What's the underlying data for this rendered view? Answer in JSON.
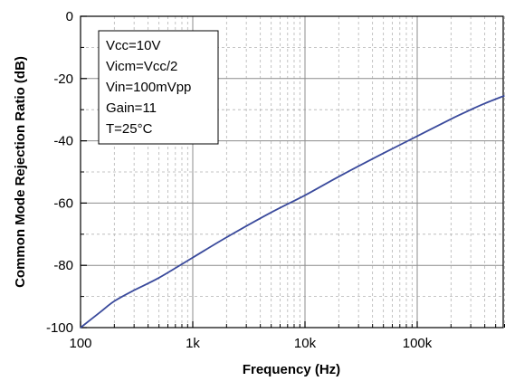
{
  "chart_data": {
    "type": "line",
    "title": "",
    "xlabel": "Frequency (Hz)",
    "ylabel": "Common Mode Rejection Ratio (dB)",
    "x_scale": "log",
    "xlim": [
      100,
      600000
    ],
    "ylim": [
      -100,
      0
    ],
    "x_ticks": [
      {
        "value": 100,
        "label": "100"
      },
      {
        "value": 1000,
        "label": "1k"
      },
      {
        "value": 10000,
        "label": "10k"
      },
      {
        "value": 100000,
        "label": "100k"
      }
    ],
    "y_ticks": [
      {
        "value": 0,
        "label": "0"
      },
      {
        "value": -20,
        "label": "-20"
      },
      {
        "value": -40,
        "label": "-40"
      },
      {
        "value": -60,
        "label": "-60"
      },
      {
        "value": -80,
        "label": "-80"
      },
      {
        "value": -100,
        "label": "-100"
      }
    ],
    "grid": true,
    "legend_position": "top-left",
    "conditions": [
      "Vcc=10V",
      "Vicm=Vcc/2",
      "Vin=100mVpp",
      "Gain=11",
      "T=25°C"
    ],
    "series": [
      {
        "color": "#3a4a9c",
        "x": [
          100,
          150,
          200,
          300,
          500,
          1000,
          2000,
          5000,
          10000,
          20000,
          50000,
          100000,
          200000,
          300000,
          400000,
          600000
        ],
        "y": [
          -100,
          -95,
          -91.5,
          -88,
          -84,
          -77.5,
          -71,
          -63,
          -57.5,
          -51.5,
          -44,
          -38.5,
          -33,
          -30,
          -28,
          -25.5
        ]
      }
    ]
  }
}
